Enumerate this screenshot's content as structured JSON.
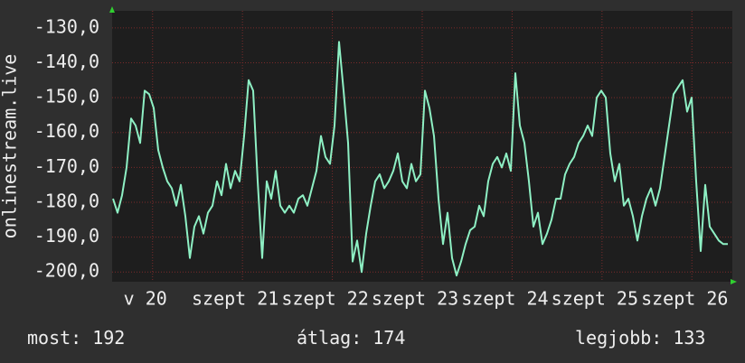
{
  "chart_data": {
    "type": "line",
    "y_label": "onlinestream.live",
    "ylim": [
      -202.8,
      -125.1
    ],
    "yticks": [
      {
        "value": -130,
        "label": "-130,0"
      },
      {
        "value": -140,
        "label": "-140,0"
      },
      {
        "value": -150,
        "label": "-150,0"
      },
      {
        "value": -160,
        "label": "-160,0"
      },
      {
        "value": -170,
        "label": "-170,0"
      },
      {
        "value": -180,
        "label": "-180,0"
      },
      {
        "value": -190,
        "label": "-190,0"
      },
      {
        "value": -200,
        "label": "-200,0"
      }
    ],
    "xlim": [
      19.55,
      26.45
    ],
    "xticks": [
      {
        "value": 20,
        "label": "v 20"
      },
      {
        "value": 21,
        "label": "szept 21"
      },
      {
        "value": 22,
        "label": "szept 22"
      },
      {
        "value": 23,
        "label": "szept 23"
      },
      {
        "value": 24,
        "label": "szept 24"
      },
      {
        "value": 25,
        "label": "szept 25"
      },
      {
        "value": 26,
        "label": "szept 26"
      }
    ],
    "grid": true,
    "series": [
      {
        "name": "onlinestream.live",
        "color": "#8ef0c4",
        "values": [
          -179,
          -183,
          -178,
          -170,
          -156,
          -158,
          -163,
          -148,
          -149,
          -153,
          -165,
          -170,
          -174,
          -176,
          -181,
          -175,
          -184,
          -196,
          -187,
          -184,
          -189,
          -183,
          -181,
          -174,
          -178,
          -169,
          -176,
          -171,
          -174,
          -161,
          -145,
          -148,
          -174,
          -196,
          -174,
          -179,
          -171,
          -181,
          -183,
          -181,
          -183,
          -179,
          -178,
          -181,
          -176,
          -171,
          -161,
          -167,
          -169,
          -158,
          -134,
          -148,
          -163,
          -197,
          -191,
          -200,
          -189,
          -181,
          -174,
          -172,
          -176,
          -174,
          -171,
          -166,
          -174,
          -176,
          -169,
          -174,
          -172,
          -148,
          -153,
          -161,
          -179,
          -192,
          -183,
          -196,
          -201,
          -197,
          -192,
          -188,
          -187,
          -181,
          -184,
          -174,
          -169,
          -167,
          -170,
          -166,
          -171,
          -143,
          -158,
          -163,
          -174,
          -187,
          -183,
          -192,
          -189,
          -185,
          -179,
          -179,
          -172,
          -169,
          -167,
          -163,
          -161,
          -158,
          -161,
          -150,
          -148,
          -150,
          -166,
          -174,
          -169,
          -181,
          -179,
          -184,
          -191,
          -184,
          -179,
          -176,
          -181,
          -176,
          -167,
          -158,
          -149,
          -147,
          -145,
          -154,
          -150,
          -174,
          -194,
          -175,
          -187,
          -189,
          -191,
          -192,
          -192
        ]
      }
    ],
    "footer": [
      {
        "label": "most:",
        "value": 192
      },
      {
        "label": "átlag:",
        "value": 174
      },
      {
        "label": "legjobb:",
        "value": 133
      }
    ]
  }
}
